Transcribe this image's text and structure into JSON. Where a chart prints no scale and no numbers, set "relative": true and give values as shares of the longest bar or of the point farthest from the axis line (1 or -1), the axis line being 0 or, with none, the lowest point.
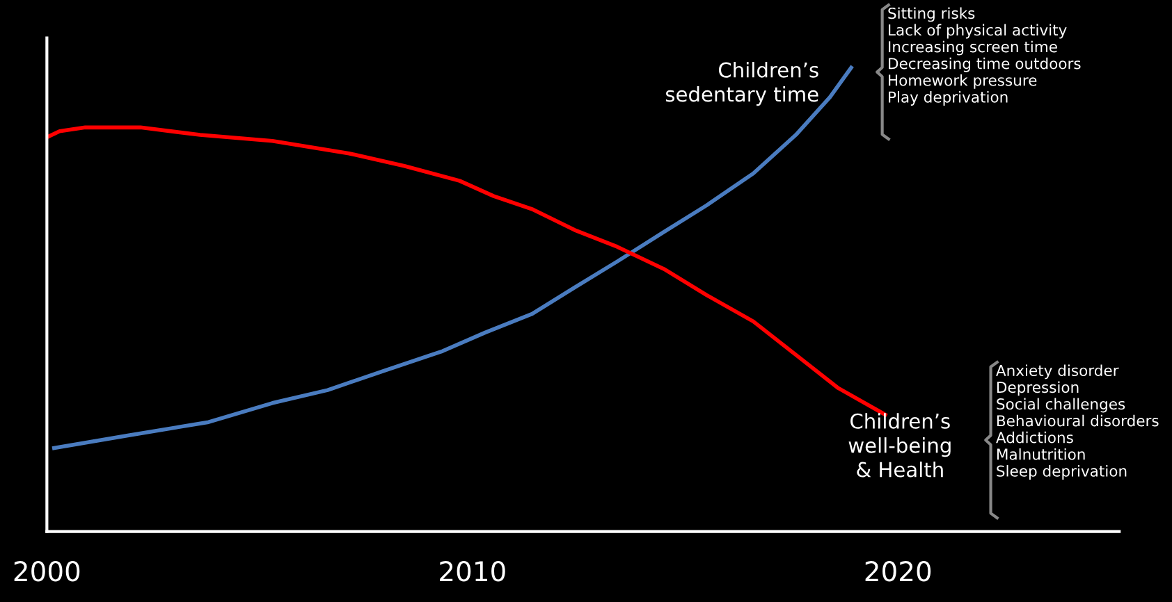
{
  "chart_data": {
    "type": "line",
    "relative": true,
    "xlim": [
      2000,
      2025.2
    ],
    "xticks": [
      2000,
      2010,
      2020
    ],
    "grid": false,
    "legend": false,
    "marker": "none",
    "line_style": "solid",
    "series": [
      {
        "name": "Children’s sedentary time",
        "color": "#4a7cc0",
        "x": [
          2000.17,
          2001.9,
          2003.8,
          2005.3,
          2006.6,
          2007.9,
          2009.3,
          2010.3,
          2011.4,
          2012.4,
          2013.4,
          2014.5,
          2015.5,
          2016.6,
          2017.6,
          2018.4,
          2018.9
        ],
        "values": [
          0.18,
          0.207,
          0.236,
          0.277,
          0.305,
          0.346,
          0.389,
          0.429,
          0.469,
          0.526,
          0.582,
          0.646,
          0.703,
          0.772,
          0.855,
          0.936,
          1.0
        ]
      },
      {
        "name": "Children’s well-being & Health",
        "color": "#ff0000",
        "x": [
          2000,
          2000.3,
          2000.9,
          2002.2,
          2003.6,
          2005.3,
          2007.1,
          2008.4,
          2009.7,
          2010.5,
          2011.4,
          2012.4,
          2013.4,
          2014.5,
          2015.5,
          2016.6,
          2017.6,
          2018.6,
          2019.7
        ],
        "values": [
          0.85,
          0.863,
          0.871,
          0.871,
          0.855,
          0.842,
          0.815,
          0.788,
          0.756,
          0.723,
          0.695,
          0.65,
          0.614,
          0.566,
          0.51,
          0.453,
          0.381,
          0.309,
          0.252
        ]
      }
    ],
    "annotations": [
      "Sitting risks\nLack of physical activity\nIncreasing screen time\nDecreasing time outdoors\nHomework pressure\nPlay deprivation",
      "Anxiety disorder\nDepression\nSocial challenges\nBehavioural disorders\nAddictions\nMalnutrition\nSleep deprivation"
    ]
  }
}
